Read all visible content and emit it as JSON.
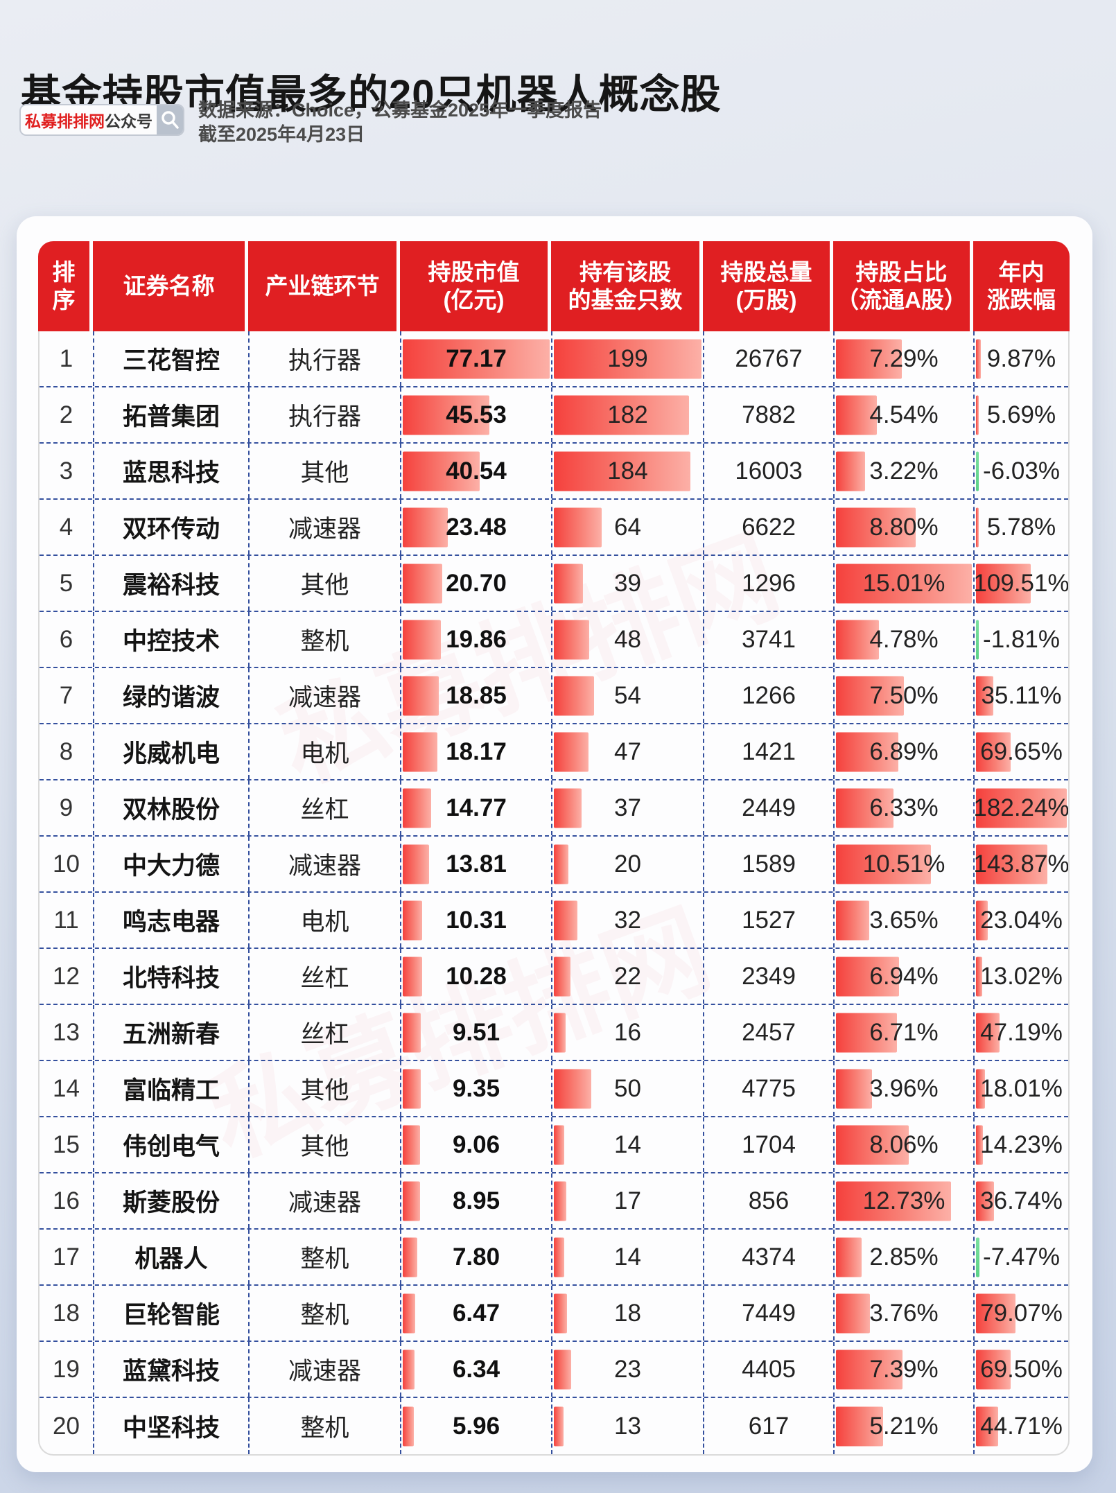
{
  "title": "基金持股市值最多的20只机器人概念股",
  "badge": {
    "brand": "私募排排网",
    "suffix": "公众号",
    "icon": "search-icon",
    "brand_color": "#e01f1f"
  },
  "source": {
    "line1": "数据来源：Choice，公募基金2025年一季度报告",
    "line2": "截至2025年4月23日"
  },
  "watermark_text": "私募排排网",
  "colors": {
    "header_red": "#e01f22",
    "bar_red_start": "#f5413d",
    "bar_red_end": "#fcb0a7",
    "bar_green": "#63d78e",
    "dashed_border_blue": "#34509e",
    "card_white": "#fdfdfe",
    "page_background_top": "#eaedf3",
    "page_background_bottom": "#c7d2e6"
  },
  "chart_data": {
    "type": "table",
    "title": "基金持股市值最多的20只机器人概念股",
    "columns": [
      "排序",
      "证券名称",
      "产业链环节",
      "持股市值(亿元)",
      "持有该股的基金只数",
      "持股总量(万股)",
      "持股占比（流通A股）",
      "年内涨跌幅"
    ],
    "header_lines": [
      [
        "排",
        "序"
      ],
      [
        "证券名称"
      ],
      [
        "产业链环节"
      ],
      [
        "持股市值",
        "(亿元)"
      ],
      [
        "持有该股",
        "的基金只数"
      ],
      [
        "持股总量",
        "(万股)"
      ],
      [
        "持股占比",
        "（流通A股）"
      ],
      [
        "年内",
        "涨跌幅"
      ]
    ],
    "bar_scales": {
      "market_cap_max": 77.17,
      "fund_count_max": 199,
      "holding_ratio_max": 15.01,
      "ytd_change_abs_max": 182.24
    },
    "rows": [
      {
        "rank": "1",
        "name": "三花智控",
        "segment": "执行器",
        "market_cap": "77.17",
        "fund_count": "199",
        "total_shares": "26767",
        "holding_ratio": "7.29%",
        "ytd_change": "9.87%"
      },
      {
        "rank": "2",
        "name": "拓普集团",
        "segment": "执行器",
        "market_cap": "45.53",
        "fund_count": "182",
        "total_shares": "7882",
        "holding_ratio": "4.54%",
        "ytd_change": "5.69%"
      },
      {
        "rank": "3",
        "name": "蓝思科技",
        "segment": "其他",
        "market_cap": "40.54",
        "fund_count": "184",
        "total_shares": "16003",
        "holding_ratio": "3.22%",
        "ytd_change": "-6.03%"
      },
      {
        "rank": "4",
        "name": "双环传动",
        "segment": "减速器",
        "market_cap": "23.48",
        "fund_count": "64",
        "total_shares": "6622",
        "holding_ratio": "8.80%",
        "ytd_change": "5.78%"
      },
      {
        "rank": "5",
        "name": "震裕科技",
        "segment": "其他",
        "market_cap": "20.70",
        "fund_count": "39",
        "total_shares": "1296",
        "holding_ratio": "15.01%",
        "ytd_change": "109.51%"
      },
      {
        "rank": "6",
        "name": "中控技术",
        "segment": "整机",
        "market_cap": "19.86",
        "fund_count": "48",
        "total_shares": "3741",
        "holding_ratio": "4.78%",
        "ytd_change": "-1.81%"
      },
      {
        "rank": "7",
        "name": "绿的谐波",
        "segment": "减速器",
        "market_cap": "18.85",
        "fund_count": "54",
        "total_shares": "1266",
        "holding_ratio": "7.50%",
        "ytd_change": "35.11%"
      },
      {
        "rank": "8",
        "name": "兆威机电",
        "segment": "电机",
        "market_cap": "18.17",
        "fund_count": "47",
        "total_shares": "1421",
        "holding_ratio": "6.89%",
        "ytd_change": "69.65%"
      },
      {
        "rank": "9",
        "name": "双林股份",
        "segment": "丝杠",
        "market_cap": "14.77",
        "fund_count": "37",
        "total_shares": "2449",
        "holding_ratio": "6.33%",
        "ytd_change": "182.24%"
      },
      {
        "rank": "10",
        "name": "中大力德",
        "segment": "减速器",
        "market_cap": "13.81",
        "fund_count": "20",
        "total_shares": "1589",
        "holding_ratio": "10.51%",
        "ytd_change": "143.87%"
      },
      {
        "rank": "11",
        "name": "鸣志电器",
        "segment": "电机",
        "market_cap": "10.31",
        "fund_count": "32",
        "total_shares": "1527",
        "holding_ratio": "3.65%",
        "ytd_change": "23.04%"
      },
      {
        "rank": "12",
        "name": "北特科技",
        "segment": "丝杠",
        "market_cap": "10.28",
        "fund_count": "22",
        "total_shares": "2349",
        "holding_ratio": "6.94%",
        "ytd_change": "13.02%"
      },
      {
        "rank": "13",
        "name": "五洲新春",
        "segment": "丝杠",
        "market_cap": "9.51",
        "fund_count": "16",
        "total_shares": "2457",
        "holding_ratio": "6.71%",
        "ytd_change": "47.19%"
      },
      {
        "rank": "14",
        "name": "富临精工",
        "segment": "其他",
        "market_cap": "9.35",
        "fund_count": "50",
        "total_shares": "4775",
        "holding_ratio": "3.96%",
        "ytd_change": "18.01%"
      },
      {
        "rank": "15",
        "name": "伟创电气",
        "segment": "其他",
        "market_cap": "9.06",
        "fund_count": "14",
        "total_shares": "1704",
        "holding_ratio": "8.06%",
        "ytd_change": "14.23%"
      },
      {
        "rank": "16",
        "name": "斯菱股份",
        "segment": "减速器",
        "market_cap": "8.95",
        "fund_count": "17",
        "total_shares": "856",
        "holding_ratio": "12.73%",
        "ytd_change": "36.74%"
      },
      {
        "rank": "17",
        "name": "机器人",
        "segment": "整机",
        "market_cap": "7.80",
        "fund_count": "14",
        "total_shares": "4374",
        "holding_ratio": "2.85%",
        "ytd_change": "-7.47%"
      },
      {
        "rank": "18",
        "name": "巨轮智能",
        "segment": "整机",
        "market_cap": "6.47",
        "fund_count": "18",
        "total_shares": "7449",
        "holding_ratio": "3.76%",
        "ytd_change": "79.07%"
      },
      {
        "rank": "19",
        "name": "蓝黛科技",
        "segment": "减速器",
        "market_cap": "6.34",
        "fund_count": "23",
        "total_shares": "4405",
        "holding_ratio": "7.39%",
        "ytd_change": "69.50%"
      },
      {
        "rank": "20",
        "name": "中坚科技",
        "segment": "整机",
        "market_cap": "5.96",
        "fund_count": "13",
        "total_shares": "617",
        "holding_ratio": "5.21%",
        "ytd_change": "44.71%"
      }
    ]
  }
}
